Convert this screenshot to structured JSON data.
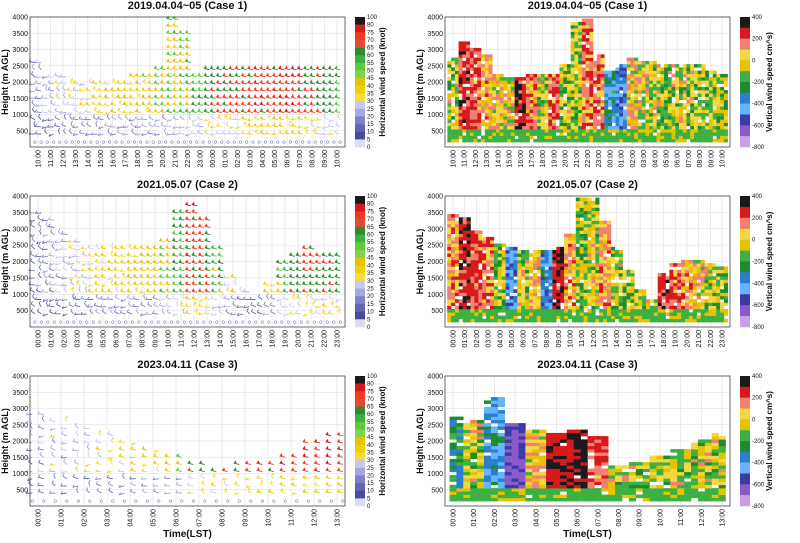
{
  "figure": {
    "x_axis_title": "Time(LST)",
    "wind_barb_colorbar": {
      "label": "Horizontal wind speed (knot)",
      "ticks": [
        "100",
        "80",
        "75",
        "70",
        "65",
        "60",
        "55",
        "50",
        "45",
        "40",
        "35",
        "30",
        "25",
        "20",
        "15",
        "10",
        "5",
        "0"
      ],
      "colors": [
        "#1a1a1a",
        "#d7191c",
        "#f03b20",
        "#e34a33",
        "#2e8b2e",
        "#3cb043",
        "#5ccc38",
        "#7fd34e",
        "#e6c200",
        "#f0d000",
        "#f5dc3c",
        "#c8c8ee",
        "#a6a6e0",
        "#8080c8",
        "#6464b4",
        "#4a4aa0",
        "#dcdcf0"
      ]
    },
    "vertical_colorbar": {
      "label": "Vertical wind speed cm^s)",
      "ticks": [
        "400",
        "200",
        "0",
        "-200",
        "-400",
        "-600",
        "-800"
      ],
      "colors": [
        "#1a1a1a",
        "#d7191c",
        "#f08070",
        "#f5d742",
        "#e6c200",
        "#3cb043",
        "#1e8c2e",
        "#2a7fd0",
        "#64b4ff",
        "#3a3aa8",
        "#8a5ac8",
        "#c8a0e6"
      ]
    }
  },
  "chart_data": [
    {
      "type": "wind_barb",
      "title": "2019.04.04~05 (Case 1)",
      "ylabel": "Height (m AGL)",
      "ylim": [
        0,
        4000
      ],
      "yticks": [
        "500",
        "1000",
        "1500",
        "2000",
        "2500",
        "3000",
        "3500",
        "4000"
      ],
      "xticks": [
        "10:00",
        "11:00",
        "12:00",
        "13:00",
        "14:00",
        "15:00",
        "16:00",
        "17:00",
        "18:00",
        "19:00",
        "20:00",
        "21:00",
        "22:00",
        "23:00",
        "00:00",
        "01:00",
        "02:00",
        "03:00",
        "04:00",
        "05:00",
        "06:00",
        "07:00",
        "08:00",
        "09:00",
        "10:00"
      ],
      "top_m": [
        2700,
        2300,
        2200,
        2100,
        2000,
        2000,
        2000,
        2100,
        2200,
        2300,
        2500,
        4000,
        3600,
        2300,
        2500,
        2600,
        2600,
        2600,
        2600,
        2600,
        2600,
        2600,
        2600,
        2500,
        2400
      ],
      "wind_speed_knot": [
        12,
        18,
        22,
        24,
        25,
        28,
        30,
        32,
        35,
        34,
        38,
        40,
        42,
        45,
        55,
        58,
        60,
        62,
        65,
        66,
        68,
        65,
        60,
        55,
        50
      ]
    },
    {
      "type": "vertical_wind",
      "title": "2019.04.04~05 (Case 1)",
      "ylabel": "Height (m AGL)",
      "ylim": [
        0,
        4000
      ],
      "yticks": [
        "500",
        "1000",
        "1500",
        "2000",
        "2500",
        "3000",
        "3500",
        "4000"
      ],
      "xticks": [
        "10:00",
        "11:00",
        "12:00",
        "13:00",
        "14:00",
        "15:00",
        "16:00",
        "17:00",
        "18:00",
        "19:00",
        "20:00",
        "21:00",
        "22:00",
        "23:00",
        "00:00",
        "01:00",
        "02:00",
        "03:00",
        "04:00",
        "05:00",
        "06:00",
        "07:00",
        "08:00",
        "09:00",
        "10:00"
      ],
      "top_m": [
        2700,
        3200,
        3000,
        2800,
        2200,
        2100,
        2100,
        2200,
        2200,
        2200,
        2500,
        3800,
        3900,
        2800,
        2300,
        2500,
        2700,
        2600,
        2600,
        2500,
        2500,
        2500,
        2500,
        2300,
        2200
      ],
      "w_cm_s": [
        50,
        300,
        250,
        150,
        120,
        80,
        350,
        180,
        60,
        250,
        40,
        20,
        200,
        220,
        -150,
        -250,
        100,
        80,
        50,
        40,
        60,
        50,
        40,
        30,
        20
      ]
    },
    {
      "type": "wind_barb",
      "title": "2021.05.07 (Case 2)",
      "ylabel": "Height (m AGL)",
      "ylim": [
        0,
        4000
      ],
      "yticks": [
        "500",
        "1000",
        "1500",
        "2000",
        "2500",
        "3000",
        "3500",
        "4000"
      ],
      "xticks": [
        "00:00",
        "01:00",
        "02:00",
        "03:00",
        "04:00",
        "05:00",
        "06:00",
        "07:00",
        "08:00",
        "09:00",
        "10:00",
        "11:00",
        "12:00",
        "13:00",
        "14:00",
        "15:00",
        "16:00",
        "17:00",
        "18:00",
        "19:00",
        "20:00",
        "21:00",
        "22:00",
        "23:00"
      ],
      "top_m": [
        3700,
        3400,
        3000,
        2700,
        2600,
        2500,
        2400,
        2400,
        2400,
        2400,
        2800,
        3600,
        3900,
        3400,
        2500,
        1600,
        1100,
        900,
        1500,
        2000,
        2300,
        2400,
        2300,
        2200
      ],
      "wind_speed_knot": [
        10,
        12,
        18,
        22,
        25,
        28,
        30,
        32,
        34,
        36,
        40,
        50,
        65,
        60,
        45,
        30,
        20,
        15,
        30,
        45,
        55,
        62,
        60,
        58
      ]
    },
    {
      "type": "vertical_wind",
      "title": "2021.05.07 (Case 2)",
      "ylabel": "Height (m AGL)",
      "ylim": [
        0,
        4000
      ],
      "yticks": [
        "500",
        "1000",
        "1500",
        "2000",
        "2500",
        "3000",
        "3500",
        "4000"
      ],
      "xticks": [
        "00:00",
        "01:00",
        "02:00",
        "03:00",
        "04:00",
        "05:00",
        "06:00",
        "07:00",
        "08:00",
        "09:00",
        "10:00",
        "11:00",
        "12:00",
        "13:00",
        "14:00",
        "15:00",
        "16:00",
        "17:00",
        "18:00",
        "19:00",
        "20:00",
        "21:00",
        "22:00",
        "23:00"
      ],
      "top_m": [
        3400,
        3300,
        2900,
        2700,
        2500,
        2400,
        2300,
        2300,
        2300,
        2400,
        2800,
        3900,
        3900,
        3200,
        2400,
        1700,
        1100,
        800,
        1600,
        1900,
        2000,
        2000,
        1900,
        1800
      ],
      "w_cm_s": [
        180,
        320,
        260,
        220,
        30,
        -250,
        50,
        120,
        -220,
        350,
        160,
        20,
        60,
        150,
        40,
        30,
        20,
        60,
        300,
        250,
        160,
        80,
        40,
        30
      ]
    },
    {
      "type": "wind_barb",
      "title": "2023.04.11 (Case 3)",
      "ylabel": "Height (m AGL)",
      "ylim": [
        0,
        4000
      ],
      "yticks": [
        "500",
        "1000",
        "1500",
        "2000",
        "2500",
        "3000",
        "3500",
        "4000"
      ],
      "xticks": [
        "00:00",
        "01:00",
        "02:00",
        "03:00",
        "04:00",
        "05:00",
        "06:00",
        "07:00",
        "08:00",
        "09:00",
        "10:00",
        "11:00",
        "12:00",
        "13:00"
      ],
      "top_m": [
        2900,
        2800,
        2600,
        2300,
        2100,
        1900,
        1600,
        1300,
        1200,
        1300,
        1400,
        1700,
        2100,
        2300
      ],
      "wind_speed_knot": [
        15,
        20,
        22,
        25,
        28,
        30,
        35,
        55,
        60,
        62,
        65,
        68,
        70,
        68
      ]
    },
    {
      "type": "vertical_wind",
      "title": "2023.04.11 (Case 3)",
      "ylabel": "Height (m AGL)",
      "ylim": [
        0,
        4000
      ],
      "yticks": [
        "500",
        "1000",
        "1500",
        "2000",
        "2500",
        "3000",
        "3500",
        "4000"
      ],
      "xticks": [
        "00:00",
        "01:00",
        "02:00",
        "03:00",
        "04:00",
        "05:00",
        "06:00",
        "07:00",
        "08:00",
        "09:00",
        "10:00",
        "11:00",
        "12:00",
        "13:00"
      ],
      "top_m": [
        2700,
        2600,
        3300,
        2500,
        2300,
        2200,
        2300,
        2100,
        1200,
        1300,
        1500,
        1700,
        2000,
        2200
      ],
      "w_cm_s": [
        -100,
        50,
        -200,
        -450,
        120,
        380,
        420,
        250,
        60,
        40,
        30,
        50,
        60,
        40
      ]
    }
  ]
}
